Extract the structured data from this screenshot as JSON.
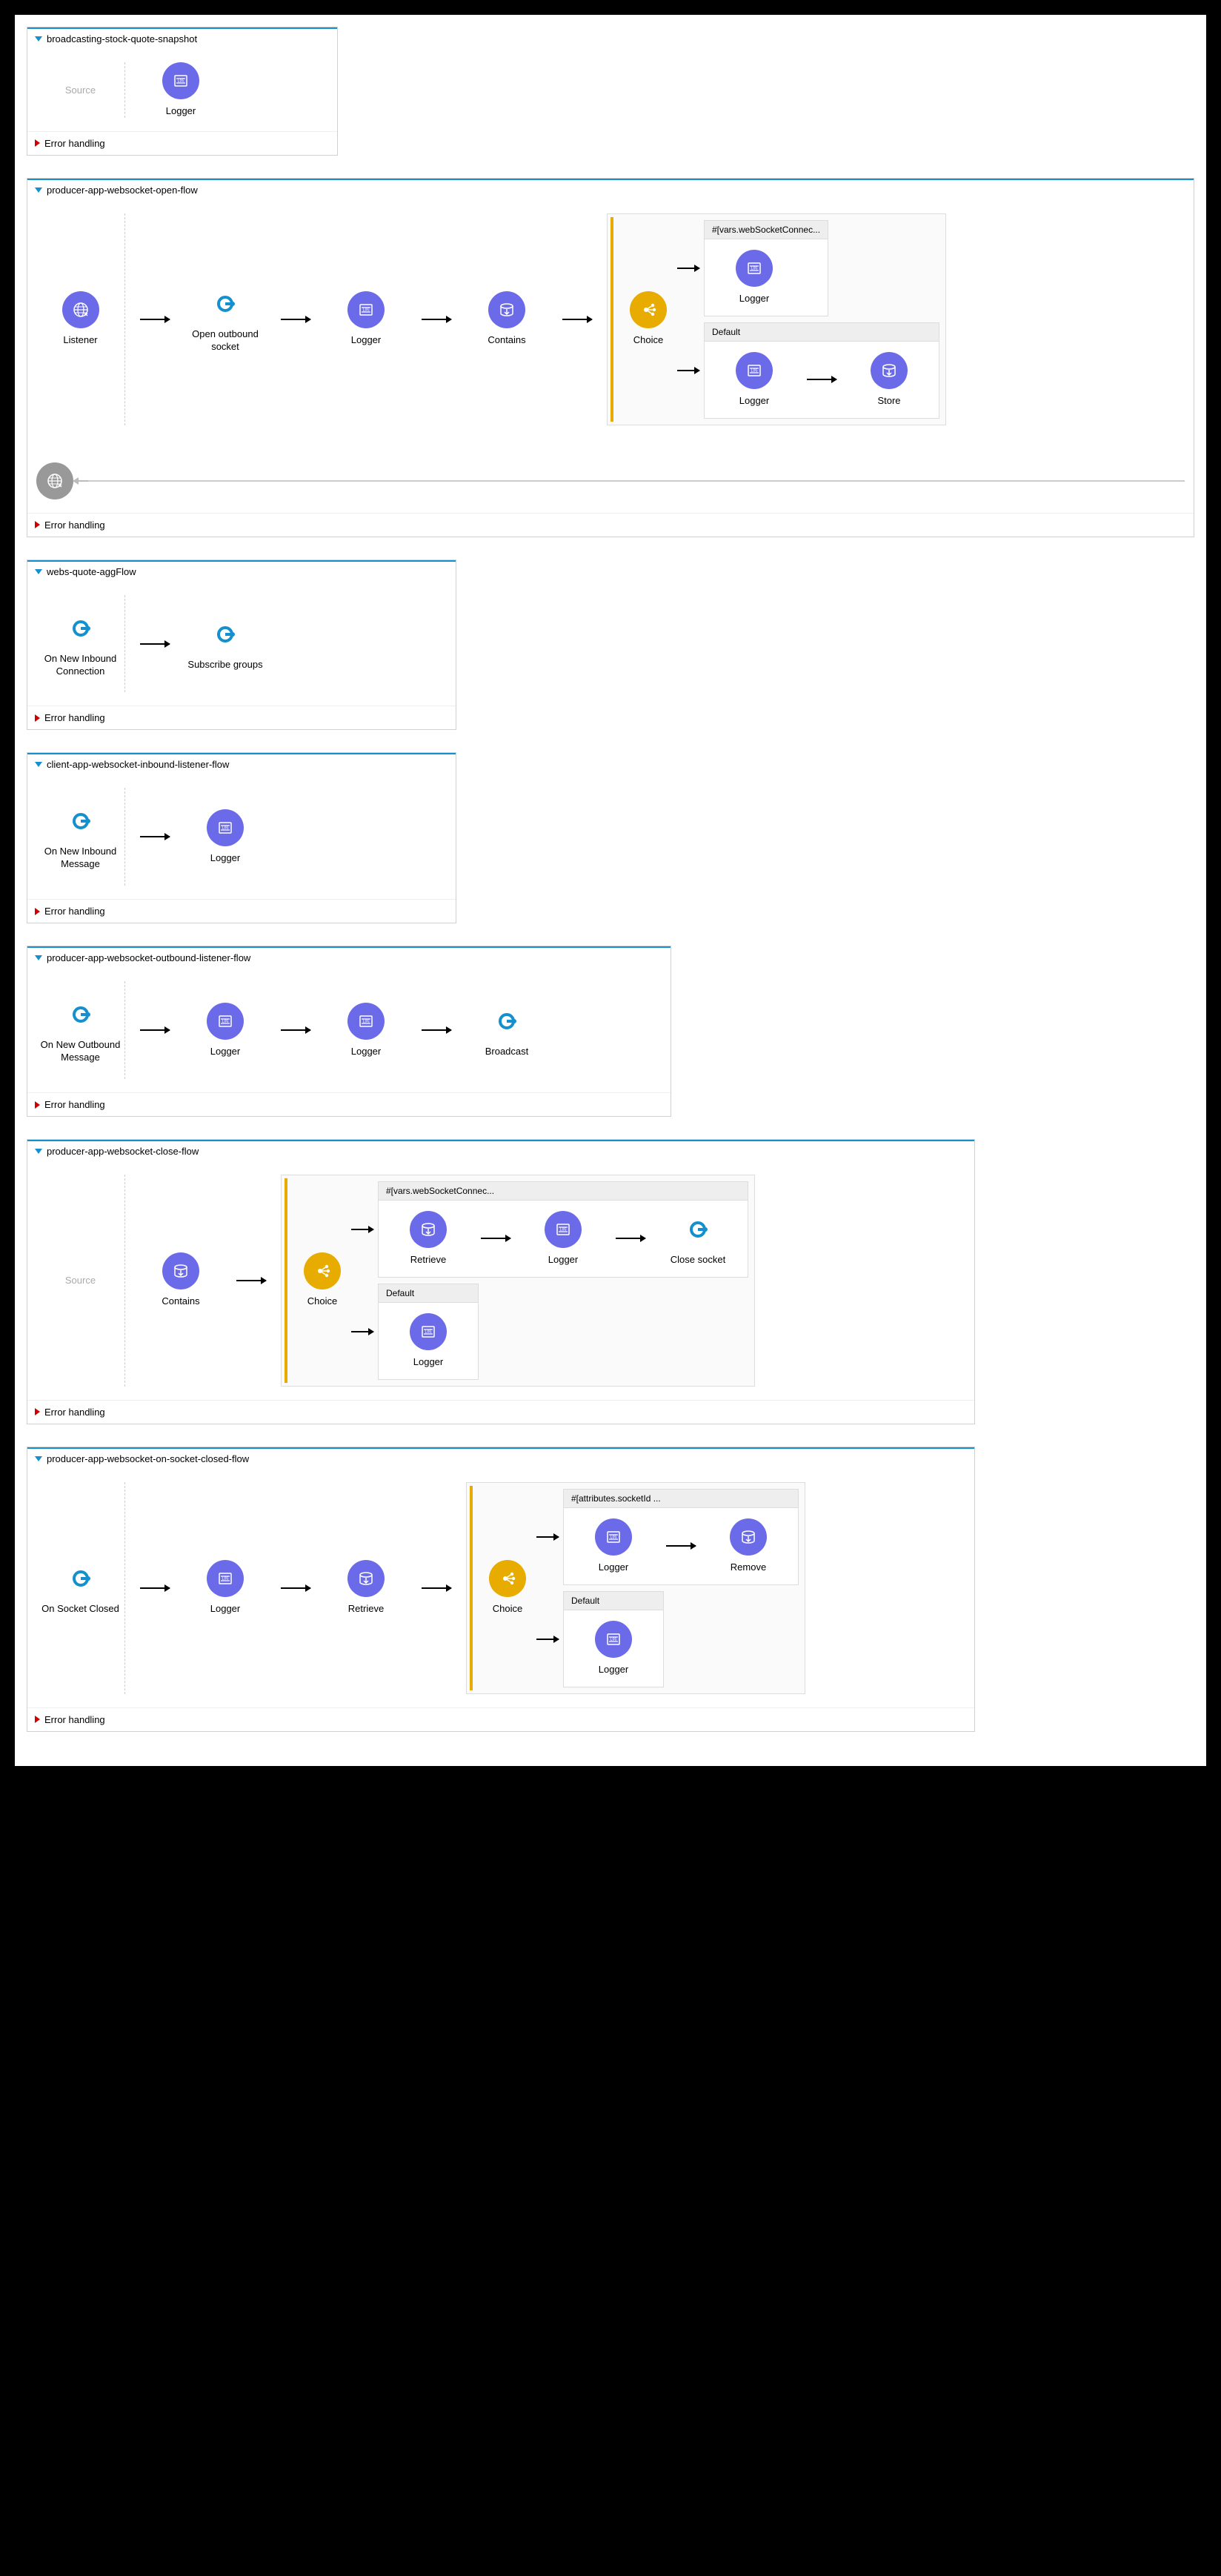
{
  "colors": {
    "purple": "#6b6bea",
    "teal": "#1590cf",
    "yellow": "#e8ab00",
    "gray": "#999999",
    "border": "#d0d0d0"
  },
  "labels": {
    "source": "Source",
    "error_handling": "Error handling",
    "default": "Default",
    "choice": "Choice"
  },
  "icons": {
    "logger": "logger",
    "websocket": "websocket",
    "store": "store",
    "choice": "choice",
    "globe": "globe"
  },
  "flows": [
    {
      "id": "broadcasting",
      "title": "broadcasting-stock-quote-snapshot",
      "width": "w-420",
      "has_source_placeholder": true,
      "nodes": [
        {
          "label": "Logger",
          "color": "purple",
          "icon": "logger"
        }
      ]
    },
    {
      "id": "open-flow",
      "title": "producer-app-websocket-open-flow",
      "width": "w-full",
      "source_node": {
        "label": "Listener",
        "color": "purple",
        "icon": "globe"
      },
      "nodes": [
        {
          "label": "Open outbound socket",
          "color": "teal",
          "icon": "websocket"
        },
        {
          "label": "Logger",
          "color": "purple",
          "icon": "logger"
        },
        {
          "label": "Contains",
          "color": "purple",
          "icon": "store"
        }
      ],
      "choice": {
        "branches": [
          {
            "header": "#[vars.webSocketConnec...",
            "nodes": [
              {
                "label": "Logger",
                "color": "purple",
                "icon": "logger"
              }
            ]
          },
          {
            "header": "Default",
            "nodes": [
              {
                "label": "Logger",
                "color": "purple",
                "icon": "logger"
              },
              {
                "label": "Store",
                "color": "purple",
                "icon": "store"
              }
            ]
          }
        ]
      },
      "has_feedback": true
    },
    {
      "id": "agg-flow",
      "title": "webs-quote-aggFlow",
      "width": "w-580",
      "source_node": {
        "label": "On New Inbound Connection",
        "color": "teal",
        "icon": "websocket"
      },
      "nodes": [
        {
          "label": "Subscribe groups",
          "color": "teal",
          "icon": "websocket"
        }
      ]
    },
    {
      "id": "inbound-listener",
      "title": "client-app-websocket-inbound-listener-flow",
      "width": "w-580",
      "source_node": {
        "label": "On New Inbound Message",
        "color": "teal",
        "icon": "websocket"
      },
      "nodes": [
        {
          "label": "Logger",
          "color": "purple",
          "icon": "logger"
        }
      ]
    },
    {
      "id": "outbound-listener",
      "title": "producer-app-websocket-outbound-listener-flow",
      "width": "w-870",
      "source_node": {
        "label": "On New Outbound Message",
        "color": "teal",
        "icon": "websocket"
      },
      "nodes": [
        {
          "label": "Logger",
          "color": "purple",
          "icon": "logger"
        },
        {
          "label": "Logger",
          "color": "purple",
          "icon": "logger"
        },
        {
          "label": "Broadcast",
          "color": "teal",
          "icon": "websocket"
        }
      ]
    },
    {
      "id": "close-flow",
      "title": "producer-app-websocket-close-flow",
      "width": "w-1280",
      "has_source_placeholder": true,
      "nodes": [
        {
          "label": "Contains",
          "color": "purple",
          "icon": "store"
        }
      ],
      "choice": {
        "branches": [
          {
            "header": "#[vars.webSocketConnec...",
            "nodes": [
              {
                "label": "Retrieve",
                "color": "purple",
                "icon": "store"
              },
              {
                "label": "Logger",
                "color": "purple",
                "icon": "logger"
              },
              {
                "label": "Close socket",
                "color": "teal",
                "icon": "websocket"
              }
            ]
          },
          {
            "header": "Default",
            "nodes": [
              {
                "label": "Logger",
                "color": "purple",
                "icon": "logger"
              }
            ]
          }
        ]
      }
    },
    {
      "id": "socket-closed",
      "title": "producer-app-websocket-on-socket-closed-flow",
      "width": "w-1280",
      "source_node": {
        "label": "On Socket Closed",
        "color": "teal",
        "icon": "websocket"
      },
      "nodes": [
        {
          "label": "Logger",
          "color": "purple",
          "icon": "logger"
        },
        {
          "label": "Retrieve",
          "color": "purple",
          "icon": "store"
        }
      ],
      "choice": {
        "branches": [
          {
            "header": "#[attributes.socketId ...",
            "nodes": [
              {
                "label": "Logger",
                "color": "purple",
                "icon": "logger"
              },
              {
                "label": "Remove",
                "color": "purple",
                "icon": "store"
              }
            ]
          },
          {
            "header": "Default",
            "nodes": [
              {
                "label": "Logger",
                "color": "purple",
                "icon": "logger"
              }
            ]
          }
        ]
      }
    }
  ]
}
